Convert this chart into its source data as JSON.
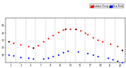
{
  "background_color": "#ffffff",
  "temp_color": "#ff0000",
  "dew_color": "#0000ff",
  "black_color": "#000000",
  "grid_color": "#888888",
  "ylim": [
    0,
    60
  ],
  "xlim": [
    0,
    24
  ],
  "xticks": [
    1,
    3,
    5,
    7,
    9,
    11,
    13,
    15,
    17,
    19,
    21,
    23
  ],
  "yticks": [
    10,
    20,
    30,
    40,
    50
  ],
  "temp_x": [
    0.5,
    1.5,
    3.0,
    4.5,
    5.5,
    6.5,
    7.5,
    8.5,
    9.5,
    10.5,
    11.5,
    12.0,
    13.0,
    14.0,
    15.0,
    16.0,
    16.5,
    17.5,
    18.5,
    19.5,
    21.0,
    22.5,
    23.5
  ],
  "temp_y": [
    28,
    26,
    24,
    22,
    20,
    23,
    28,
    33,
    37,
    41,
    44,
    46,
    46,
    45,
    43,
    40,
    38,
    34,
    30,
    28,
    25,
    22,
    17
  ],
  "dew_x": [
    0.5,
    1.5,
    3.0,
    4.5,
    5.5,
    7.5,
    8.5,
    9.5,
    10.5,
    11.5,
    12.5,
    14.5,
    16.5,
    17.5,
    18.5,
    20.5,
    21.5,
    22.5,
    23.5
  ],
  "dew_y": [
    10,
    9,
    7,
    6,
    5,
    5,
    6,
    8,
    10,
    13,
    16,
    15,
    12,
    10,
    8,
    6,
    4,
    2,
    0
  ],
  "black_x": [
    0.5,
    5.5,
    12.0,
    14.0,
    23.5
  ],
  "black_y": [
    28,
    20,
    46,
    45,
    17
  ],
  "vgrid_x": [
    2,
    4,
    6,
    8,
    10,
    12,
    14,
    16,
    18,
    20,
    22
  ],
  "legend_temp_label": "Outdoor Temp",
  "legend_dew_label": "Dew Point",
  "marker_size": 2.0,
  "black_marker_size": 1.5
}
